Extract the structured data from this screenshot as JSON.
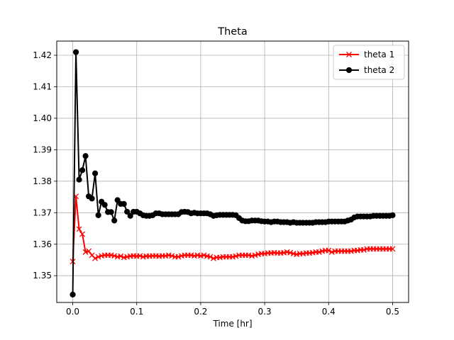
{
  "chart_data": {
    "type": "line",
    "title": "Theta",
    "xlabel": "Time [hr]",
    "ylabel": "",
    "xlim": [
      -0.025,
      0.525
    ],
    "ylim": [
      1.3415,
      1.4245
    ],
    "xticks": [
      0.0,
      0.1,
      0.2,
      0.3,
      0.4,
      0.5
    ],
    "xtick_labels": [
      "0.0",
      "0.1",
      "0.2",
      "0.3",
      "0.4",
      "0.5"
    ],
    "yticks": [
      1.35,
      1.36,
      1.37,
      1.38,
      1.39,
      1.4,
      1.41,
      1.42
    ],
    "ytick_labels": [
      "1.35",
      "1.36",
      "1.37",
      "1.38",
      "1.39",
      "1.40",
      "1.41",
      "1.42"
    ],
    "grid": true,
    "legend_position": "top-right",
    "x": [
      0.0,
      0.005,
      0.01,
      0.015,
      0.02,
      0.025,
      0.03,
      0.035,
      0.04,
      0.045,
      0.05,
      0.055,
      0.06,
      0.065,
      0.07,
      0.075,
      0.08,
      0.085,
      0.09,
      0.095,
      0.1,
      0.105,
      0.11,
      0.115,
      0.12,
      0.125,
      0.13,
      0.135,
      0.14,
      0.145,
      0.15,
      0.155,
      0.16,
      0.165,
      0.17,
      0.175,
      0.18,
      0.185,
      0.19,
      0.195,
      0.2,
      0.205,
      0.21,
      0.215,
      0.22,
      0.225,
      0.23,
      0.235,
      0.24,
      0.245,
      0.25,
      0.255,
      0.26,
      0.265,
      0.27,
      0.275,
      0.28,
      0.285,
      0.29,
      0.295,
      0.3,
      0.305,
      0.31,
      0.315,
      0.32,
      0.325,
      0.33,
      0.335,
      0.34,
      0.345,
      0.35,
      0.355,
      0.36,
      0.365,
      0.37,
      0.375,
      0.38,
      0.385,
      0.39,
      0.395,
      0.4,
      0.405,
      0.41,
      0.415,
      0.42,
      0.425,
      0.43,
      0.435,
      0.44,
      0.445,
      0.45,
      0.455,
      0.46,
      0.465,
      0.47,
      0.475,
      0.48,
      0.485,
      0.49,
      0.495,
      0.5
    ],
    "series": [
      {
        "name": "theta 1",
        "color": "#ff0000",
        "marker": "x",
        "values": [
          1.3545,
          1.3752,
          1.3648,
          1.3632,
          1.3575,
          1.3578,
          1.3565,
          1.3555,
          1.356,
          1.3563,
          1.3565,
          1.3565,
          1.3565,
          1.3563,
          1.356,
          1.3562,
          1.3558,
          1.356,
          1.3562,
          1.3563,
          1.3562,
          1.3563,
          1.356,
          1.3562,
          1.3562,
          1.3563,
          1.3563,
          1.3562,
          1.3563,
          1.3563,
          1.3565,
          1.3563,
          1.356,
          1.356,
          1.3563,
          1.3565,
          1.3565,
          1.3565,
          1.3563,
          1.3565,
          1.3563,
          1.3565,
          1.3562,
          1.356,
          1.3555,
          1.3558,
          1.3558,
          1.356,
          1.356,
          1.356,
          1.356,
          1.3562,
          1.3565,
          1.3565,
          1.3565,
          1.3565,
          1.3563,
          1.3565,
          1.3568,
          1.357,
          1.357,
          1.3572,
          1.3572,
          1.3573,
          1.3572,
          1.3572,
          1.3573,
          1.3575,
          1.3573,
          1.357,
          1.3568,
          1.357,
          1.357,
          1.3572,
          1.3572,
          1.3573,
          1.3575,
          1.3575,
          1.3578,
          1.358,
          1.358,
          1.3575,
          1.3578,
          1.3578,
          1.3578,
          1.3578,
          1.3578,
          1.3578,
          1.358,
          1.358,
          1.3582,
          1.3582,
          1.3585,
          1.3585,
          1.3585,
          1.3585,
          1.3585,
          1.3585,
          1.3585,
          1.3585,
          1.3585
        ]
      },
      {
        "name": "theta 2",
        "color": "#000000",
        "marker": "o",
        "values": [
          1.344,
          1.421,
          1.3805,
          1.3835,
          1.388,
          1.3752,
          1.3745,
          1.3825,
          1.3692,
          1.3735,
          1.3725,
          1.3702,
          1.3702,
          1.3675,
          1.374,
          1.3728,
          1.3728,
          1.3703,
          1.369,
          1.3703,
          1.3703,
          1.3698,
          1.3692,
          1.369,
          1.369,
          1.3692,
          1.3698,
          1.3698,
          1.3695,
          1.3695,
          1.3695,
          1.3695,
          1.3695,
          1.3695,
          1.3702,
          1.3703,
          1.3702,
          1.3698,
          1.37,
          1.3698,
          1.3698,
          1.3698,
          1.3698,
          1.3695,
          1.369,
          1.3692,
          1.3693,
          1.3693,
          1.3693,
          1.3693,
          1.3693,
          1.3692,
          1.3683,
          1.3675,
          1.3673,
          1.3673,
          1.3675,
          1.3675,
          1.3675,
          1.3673,
          1.3672,
          1.3672,
          1.367,
          1.3672,
          1.3672,
          1.367,
          1.367,
          1.367,
          1.3668,
          1.367,
          1.3668,
          1.3668,
          1.3668,
          1.3668,
          1.3668,
          1.3668,
          1.367,
          1.367,
          1.367,
          1.367,
          1.3672,
          1.3672,
          1.3672,
          1.3672,
          1.3672,
          1.3672,
          1.3675,
          1.3678,
          1.3685,
          1.3688,
          1.3688,
          1.3688,
          1.3688,
          1.3688,
          1.369,
          1.369,
          1.369,
          1.369,
          1.369,
          1.369,
          1.3692
        ]
      }
    ]
  }
}
